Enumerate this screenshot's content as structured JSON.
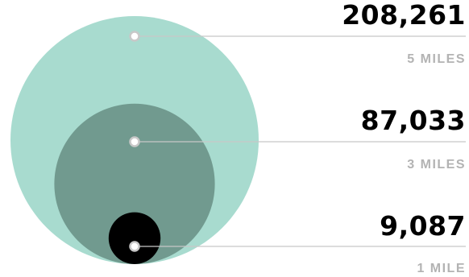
{
  "chart_data": {
    "type": "bubble",
    "entries": [
      {
        "radius_label": "5 MILES",
        "radius_miles": 5,
        "value": 208261,
        "value_label": "208,261",
        "color": "#a8dbcf"
      },
      {
        "radius_label": "3 MILES",
        "radius_miles": 3,
        "value": 87033,
        "value_label": "87,033",
        "color": "#719a8f"
      },
      {
        "radius_label": "1 MILE",
        "radius_miles": 1,
        "value": 9087,
        "value_label": "9,087",
        "color": "#000000"
      }
    ]
  },
  "style": {
    "leader_color": "#c8c8c8",
    "marker_fill": "#ffffff",
    "marker_stroke": "#c8c8c8"
  }
}
